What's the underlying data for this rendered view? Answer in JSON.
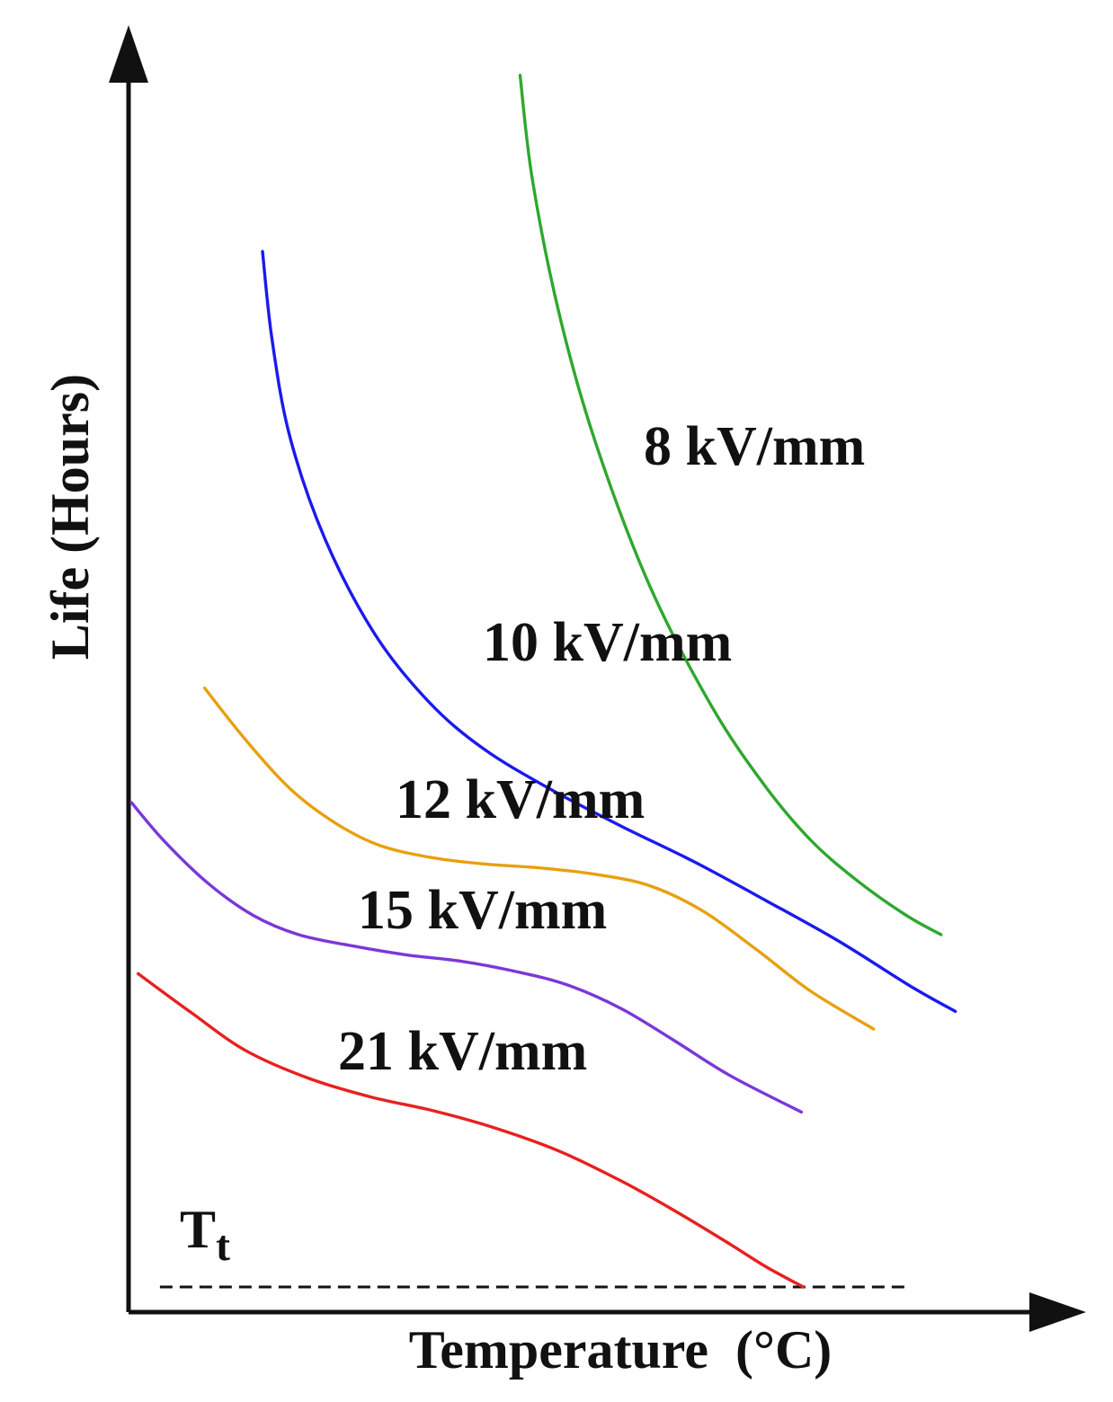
{
  "chart_data": {
    "type": "line",
    "title": "",
    "xlabel": "Temperature  (°C)",
    "ylabel": "Life (Hours)",
    "xlim": [
      0,
      100
    ],
    "ylim": [
      0,
      100
    ],
    "grid": false,
    "axis_ticks": "none",
    "series": [
      {
        "name": "8 kV/mm",
        "label": "8 kV/mm",
        "color": "#2ea82e",
        "x": [
          41.2,
          42.5,
          45.3,
          49.1,
          54.8,
          61.4,
          67.1,
          71.8,
          76.5,
          81.7,
          85.5
        ],
        "y": [
          98.3,
          90.0,
          79.4,
          69.2,
          57.8,
          48.1,
          41.7,
          37.5,
          34.4,
          31.6,
          30.0
        ]
      },
      {
        "name": "10 kV/mm",
        "label": "10 kV/mm",
        "color": "#1a1aee",
        "x": [
          14.1,
          15.1,
          17.0,
          20.7,
          25.9,
          31.6,
          37.3,
          44.3,
          51.9,
          59.5,
          67.1,
          74.7,
          82.3,
          87.0
        ],
        "y": [
          84.3,
          77.3,
          69.5,
          61.4,
          53.9,
          48.5,
          44.8,
          41.6,
          38.6,
          35.8,
          32.7,
          29.5,
          25.9,
          23.9
        ]
      },
      {
        "name": "12 kV/mm",
        "label": "12 kV/mm",
        "color": "#e8a010",
        "x": [
          8.0,
          12.3,
          17.0,
          21.7,
          26.4,
          32.1,
          37.7,
          43.4,
          49.1,
          54.8,
          60.4,
          66.1,
          71.8,
          78.4
        ],
        "y": [
          49.6,
          45.5,
          41.6,
          38.9,
          37.1,
          36.1,
          35.6,
          35.3,
          34.8,
          33.9,
          31.9,
          28.8,
          25.5,
          22.5
        ]
      },
      {
        "name": "15 kV/mm",
        "label": "15 kV/mm",
        "color": "#7a38d8",
        "x": [
          0.3,
          3.8,
          8.5,
          13.2,
          17.9,
          23.6,
          29.2,
          34.9,
          40.6,
          46.2,
          51.9,
          57.6,
          63.3,
          70.8
        ],
        "y": [
          40.5,
          37.4,
          34.0,
          31.5,
          30.0,
          29.1,
          28.4,
          27.9,
          27.1,
          26.0,
          24.1,
          21.5,
          18.8,
          15.9
        ]
      },
      {
        "name": "21 kV/mm",
        "label": "21 kV/mm",
        "color": "#e82020",
        "x": [
          1.0,
          6.6,
          12.3,
          18.9,
          25.5,
          32.1,
          38.7,
          45.3,
          51.9,
          57.6,
          63.3,
          67.1,
          71.0
        ],
        "y": [
          26.9,
          23.8,
          20.8,
          18.6,
          17.1,
          16.0,
          14.6,
          12.8,
          10.4,
          8.0,
          5.4,
          3.6,
          2.0
        ]
      }
    ],
    "annotations": [
      {
        "type": "hline",
        "label_main": "T",
        "label_sub": "t",
        "y": 2.0,
        "x_start": 3.3,
        "x_end": 81.7,
        "style": "dashed",
        "color": "#111111"
      }
    ]
  }
}
